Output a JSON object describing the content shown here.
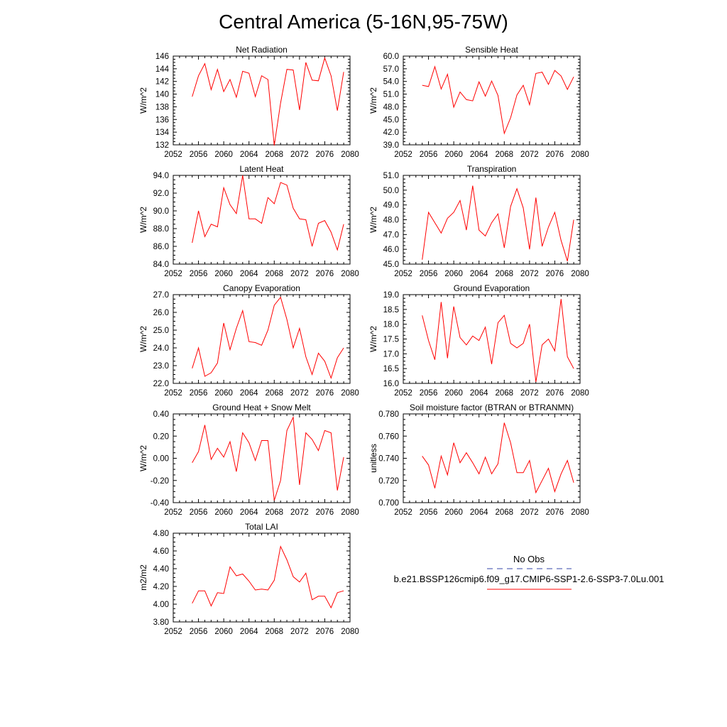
{
  "figure": {
    "title": "Central America (5-16N,95-75W)"
  },
  "legend": {
    "items": [
      {
        "label": "No Obs",
        "color": "#3344aa",
        "style": "dashed"
      },
      {
        "label": "b.e21.BSSP126cmip6.f09_g17.CMIP6-SSP1-2.6-SSP3-7.0Lu.001",
        "color": "#ff0000",
        "style": "solid"
      }
    ]
  },
  "chart_data": [
    {
      "id": "net-radiation",
      "type": "line",
      "title": "Net Radiation",
      "ylabel": "W/m^2",
      "xlim": [
        2052,
        2080
      ],
      "ylim": [
        132,
        146
      ],
      "x_ticks": [
        2052,
        2056,
        2060,
        2064,
        2068,
        2072,
        2076,
        2080
      ],
      "y_ticks": [
        "132",
        "134",
        "136",
        "138",
        "140",
        "142",
        "144",
        "146"
      ],
      "y_tick_values": [
        132,
        134,
        136,
        138,
        140,
        142,
        144,
        146
      ],
      "x": [
        2055,
        2056,
        2057,
        2058,
        2059,
        2060,
        2061,
        2062,
        2063,
        2064,
        2065,
        2066,
        2067,
        2068,
        2069,
        2070,
        2071,
        2072,
        2073,
        2074,
        2075,
        2076,
        2077,
        2078,
        2079
      ],
      "values": [
        139.6,
        142.9,
        144.8,
        140.7,
        143.9,
        140.4,
        142.3,
        139.5,
        143.6,
        143.3,
        139.6,
        142.9,
        142.3,
        131.9,
        138.6,
        143.9,
        143.8,
        137.5,
        145.0,
        142.2,
        142.1,
        145.7,
        142.9,
        137.4,
        143.5
      ],
      "series_color": "#ff0000"
    },
    {
      "id": "sensible-heat",
      "type": "line",
      "title": "Sensible Heat",
      "ylabel": "W/m^2",
      "xlim": [
        2052,
        2080
      ],
      "ylim": [
        39,
        60
      ],
      "x_ticks": [
        2052,
        2056,
        2060,
        2064,
        2068,
        2072,
        2076,
        2080
      ],
      "y_ticks": [
        "39.0",
        "42.0",
        "45.0",
        "48.0",
        "51.0",
        "54.0",
        "57.0",
        "60.0"
      ],
      "y_tick_values": [
        39,
        42,
        45,
        48,
        51,
        54,
        57,
        60
      ],
      "x": [
        2055,
        2056,
        2057,
        2058,
        2059,
        2060,
        2061,
        2062,
        2063,
        2064,
        2065,
        2066,
        2067,
        2068,
        2069,
        2070,
        2071,
        2072,
        2073,
        2074,
        2075,
        2076,
        2077,
        2078,
        2079
      ],
      "values": [
        53.1,
        52.8,
        57.5,
        52.2,
        55.7,
        47.9,
        51.5,
        49.7,
        49.4,
        53.9,
        50.5,
        54.1,
        50.7,
        41.7,
        45.4,
        50.8,
        53.1,
        48.5,
        55.9,
        56.2,
        53.3,
        56.6,
        55.3,
        52.1,
        55.1
      ],
      "series_color": "#ff0000"
    },
    {
      "id": "latent-heat",
      "type": "line",
      "title": "Latent Heat",
      "ylabel": "W/m^2",
      "xlim": [
        2052,
        2080
      ],
      "ylim": [
        84,
        94
      ],
      "x_ticks": [
        2052,
        2056,
        2060,
        2064,
        2068,
        2072,
        2076,
        2080
      ],
      "y_ticks": [
        "84.0",
        "86.0",
        "88.0",
        "90.0",
        "92.0",
        "94.0"
      ],
      "y_tick_values": [
        84,
        86,
        88,
        90,
        92,
        94
      ],
      "x": [
        2055,
        2056,
        2057,
        2058,
        2059,
        2060,
        2061,
        2062,
        2063,
        2064,
        2065,
        2066,
        2067,
        2068,
        2069,
        2070,
        2071,
        2072,
        2073,
        2074,
        2075,
        2076,
        2077,
        2078,
        2079
      ],
      "values": [
        86.4,
        90.0,
        87.1,
        88.5,
        88.2,
        92.6,
        90.7,
        89.7,
        94.0,
        89.1,
        89.1,
        88.6,
        91.5,
        90.8,
        93.2,
        92.9,
        90.3,
        89.1,
        89.0,
        86.0,
        88.6,
        88.9,
        87.6,
        85.6,
        88.5
      ],
      "series_color": "#ff0000"
    },
    {
      "id": "transpiration",
      "type": "line",
      "title": "Transpiration",
      "ylabel": "W/m^2",
      "xlim": [
        2052,
        2080
      ],
      "ylim": [
        45,
        51
      ],
      "x_ticks": [
        2052,
        2056,
        2060,
        2064,
        2068,
        2072,
        2076,
        2080
      ],
      "y_ticks": [
        "45.0",
        "46.0",
        "47.0",
        "48.0",
        "49.0",
        "50.0",
        "51.0"
      ],
      "y_tick_values": [
        45,
        46,
        47,
        48,
        49,
        50,
        51
      ],
      "x": [
        2055,
        2056,
        2057,
        2058,
        2059,
        2060,
        2061,
        2062,
        2063,
        2064,
        2065,
        2066,
        2067,
        2068,
        2069,
        2070,
        2071,
        2072,
        2073,
        2074,
        2075,
        2076,
        2077,
        2078,
        2079
      ],
      "values": [
        45.3,
        48.5,
        47.8,
        47.1,
        48.1,
        48.5,
        49.3,
        47.3,
        50.3,
        47.3,
        46.9,
        47.8,
        48.4,
        46.1,
        48.9,
        50.1,
        48.8,
        46.0,
        49.5,
        46.2,
        47.5,
        48.5,
        46.6,
        45.2,
        48.0
      ],
      "series_color": "#ff0000"
    },
    {
      "id": "canopy-evaporation",
      "type": "line",
      "title": "Canopy Evaporation",
      "ylabel": "W/m^2",
      "xlim": [
        2052,
        2080
      ],
      "ylim": [
        22,
        27
      ],
      "x_ticks": [
        2052,
        2056,
        2060,
        2064,
        2068,
        2072,
        2076,
        2080
      ],
      "y_ticks": [
        "22.0",
        "23.0",
        "24.0",
        "25.0",
        "26.0",
        "27.0"
      ],
      "y_tick_values": [
        22,
        23,
        24,
        25,
        26,
        27
      ],
      "x": [
        2055,
        2056,
        2057,
        2058,
        2059,
        2060,
        2061,
        2062,
        2063,
        2064,
        2065,
        2066,
        2067,
        2068,
        2069,
        2070,
        2071,
        2072,
        2073,
        2074,
        2075,
        2076,
        2077,
        2078,
        2079
      ],
      "values": [
        22.85,
        24.0,
        22.4,
        22.6,
        23.15,
        25.4,
        23.9,
        25.1,
        26.1,
        24.35,
        24.3,
        24.15,
        25.0,
        26.4,
        26.85,
        25.6,
        24.0,
        25.1,
        23.5,
        22.5,
        23.7,
        23.25,
        22.3,
        23.45,
        24.0
      ],
      "series_color": "#ff0000"
    },
    {
      "id": "ground-evaporation",
      "type": "line",
      "title": "Ground Evaporation",
      "ylabel": "W/m^2",
      "xlim": [
        2052,
        2080
      ],
      "ylim": [
        16,
        19
      ],
      "x_ticks": [
        2052,
        2056,
        2060,
        2064,
        2068,
        2072,
        2076,
        2080
      ],
      "y_ticks": [
        "16.0",
        "16.5",
        "17.0",
        "17.5",
        "18.0",
        "18.5",
        "19.0"
      ],
      "y_tick_values": [
        16,
        16.5,
        17,
        17.5,
        18,
        18.5,
        19
      ],
      "x": [
        2055,
        2056,
        2057,
        2058,
        2059,
        2060,
        2061,
        2062,
        2063,
        2064,
        2065,
        2066,
        2067,
        2068,
        2069,
        2070,
        2071,
        2072,
        2073,
        2074,
        2075,
        2076,
        2077,
        2078,
        2079
      ],
      "values": [
        18.3,
        17.45,
        16.8,
        18.75,
        16.85,
        18.6,
        17.55,
        17.3,
        17.6,
        17.45,
        17.9,
        16.65,
        18.05,
        18.3,
        17.35,
        17.2,
        17.35,
        18.0,
        16.05,
        17.3,
        17.5,
        17.1,
        18.85,
        16.9,
        16.5
      ],
      "series_color": "#ff0000"
    },
    {
      "id": "ground-heat-snow-melt",
      "type": "line",
      "title": "Ground Heat + Snow Melt",
      "ylabel": "W/m^2",
      "xlim": [
        2052,
        2080
      ],
      "ylim": [
        -0.4,
        0.4
      ],
      "x_ticks": [
        2052,
        2056,
        2060,
        2064,
        2068,
        2072,
        2076,
        2080
      ],
      "y_ticks": [
        "-0.40",
        "-0.20",
        "0.00",
        "0.20",
        "0.40"
      ],
      "y_tick_values": [
        -0.4,
        -0.2,
        0.0,
        0.2,
        0.4
      ],
      "x": [
        2055,
        2056,
        2057,
        2058,
        2059,
        2060,
        2061,
        2062,
        2063,
        2064,
        2065,
        2066,
        2067,
        2068,
        2069,
        2070,
        2071,
        2072,
        2073,
        2074,
        2075,
        2076,
        2077,
        2078,
        2079
      ],
      "values": [
        -0.04,
        0.06,
        0.3,
        -0.01,
        0.09,
        0.01,
        0.15,
        -0.12,
        0.23,
        0.14,
        -0.02,
        0.16,
        0.16,
        -0.38,
        -0.2,
        0.25,
        0.37,
        -0.24,
        0.23,
        0.17,
        0.07,
        0.25,
        0.23,
        -0.29,
        0.01
      ],
      "series_color": "#ff0000"
    },
    {
      "id": "soil-moisture-factor",
      "type": "line",
      "title": "Soil moisture factor (BTRAN or BTRANMN)",
      "ylabel": "unitless",
      "xlim": [
        2052,
        2080
      ],
      "ylim": [
        0.7,
        0.78
      ],
      "x_ticks": [
        2052,
        2056,
        2060,
        2064,
        2068,
        2072,
        2076,
        2080
      ],
      "y_ticks": [
        "0.700",
        "0.720",
        "0.740",
        "0.760",
        "0.780"
      ],
      "y_tick_values": [
        0.7,
        0.72,
        0.74,
        0.76,
        0.78
      ],
      "x": [
        2055,
        2056,
        2057,
        2058,
        2059,
        2060,
        2061,
        2062,
        2063,
        2064,
        2065,
        2066,
        2067,
        2068,
        2069,
        2070,
        2071,
        2072,
        2073,
        2074,
        2075,
        2076,
        2077,
        2078,
        2079
      ],
      "values": [
        0.742,
        0.734,
        0.713,
        0.742,
        0.725,
        0.754,
        0.736,
        0.745,
        0.736,
        0.726,
        0.741,
        0.726,
        0.735,
        0.772,
        0.754,
        0.727,
        0.727,
        0.738,
        0.709,
        0.72,
        0.731,
        0.71,
        0.726,
        0.738,
        0.718
      ],
      "series_color": "#ff0000"
    },
    {
      "id": "total-lai",
      "type": "line",
      "title": "Total LAI",
      "ylabel": "m2/m2",
      "xlim": [
        2052,
        2080
      ],
      "ylim": [
        3.8,
        4.8
      ],
      "x_ticks": [
        2052,
        2056,
        2060,
        2064,
        2068,
        2072,
        2076,
        2080
      ],
      "y_ticks": [
        "3.80",
        "4.00",
        "4.20",
        "4.40",
        "4.60",
        "4.80"
      ],
      "y_tick_values": [
        3.8,
        4.0,
        4.2,
        4.4,
        4.6,
        4.8
      ],
      "x": [
        2055,
        2056,
        2057,
        2058,
        2059,
        2060,
        2061,
        2062,
        2063,
        2064,
        2065,
        2066,
        2067,
        2068,
        2069,
        2070,
        2071,
        2072,
        2073,
        2074,
        2075,
        2076,
        2077,
        2078,
        2079
      ],
      "values": [
        4.01,
        4.15,
        4.15,
        3.98,
        4.13,
        4.12,
        4.42,
        4.32,
        4.34,
        4.26,
        4.16,
        4.17,
        4.16,
        4.27,
        4.65,
        4.5,
        4.31,
        4.25,
        4.35,
        4.05,
        4.09,
        4.09,
        3.96,
        4.13,
        4.15
      ],
      "series_color": "#ff0000"
    }
  ]
}
